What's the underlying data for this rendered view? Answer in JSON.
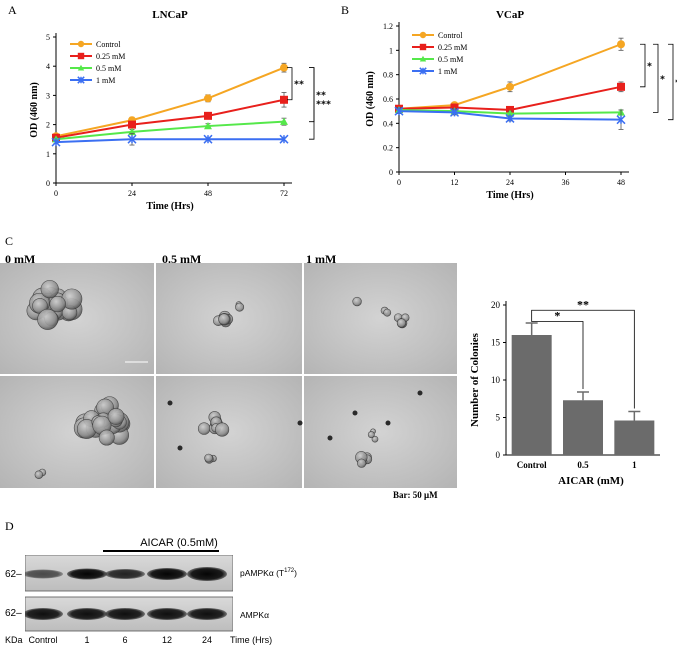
{
  "panel_labels": {
    "a": "A",
    "b": "B",
    "c": "C",
    "d": "D"
  },
  "chart_data": [
    {
      "type": "line",
      "title": "LNCaP",
      "xlabel": "Time (Hrs)",
      "ylabel": "OD (460 nm)",
      "x": [
        0,
        24,
        48,
        72
      ],
      "xticks": [
        "0",
        "24",
        "48",
        "72"
      ],
      "yticks": [
        "0",
        "1",
        "2",
        "3",
        "4",
        "5"
      ],
      "xlim": [
        0,
        72
      ],
      "ylim": [
        0,
        5
      ],
      "legend": "top-left",
      "series": [
        {
          "name": "Control",
          "values": [
            1.6,
            2.15,
            2.9,
            3.95
          ],
          "errors": [
            0.05,
            0.1,
            0.12,
            0.15
          ],
          "color": "#f5a623",
          "marker": "circle"
        },
        {
          "name": "0.25 mM",
          "values": [
            1.55,
            2.0,
            2.3,
            2.85
          ],
          "errors": [
            0.05,
            0.08,
            0.1,
            0.25
          ],
          "color": "#e8201c",
          "marker": "square"
        },
        {
          "name": "0.5 mM",
          "values": [
            1.5,
            1.75,
            1.95,
            2.1
          ],
          "errors": [
            0.05,
            0.08,
            0.08,
            0.12
          ],
          "color": "#55e84a",
          "marker": "triangle"
        },
        {
          "name": "1 mM",
          "values": [
            1.4,
            1.5,
            1.5,
            1.5
          ],
          "errors": [
            0.05,
            0.2,
            0.05,
            0.05
          ],
          "color": "#3b6ff2",
          "marker": "x"
        }
      ],
      "significance": [
        "**",
        "**",
        "***"
      ]
    },
    {
      "type": "line",
      "title": "VCaP",
      "xlabel": "Time (Hrs)",
      "ylabel": "OD (460 nm)",
      "x": [
        0,
        12,
        24,
        48
      ],
      "xticks": [
        "0",
        "12",
        "24",
        "36",
        "48"
      ],
      "yticks": [
        "0",
        "0.2",
        "0.4",
        "0.6",
        "0.8",
        "1",
        "1.2"
      ],
      "xlim": [
        0,
        48
      ],
      "ylim": [
        0,
        1.2
      ],
      "legend": "top-left",
      "series": [
        {
          "name": "Control",
          "values": [
            0.52,
            0.55,
            0.7,
            1.05
          ],
          "errors": [
            0.02,
            0.02,
            0.04,
            0.05
          ],
          "color": "#f5a623",
          "marker": "circle"
        },
        {
          "name": "0.25 mM",
          "values": [
            0.52,
            0.53,
            0.51,
            0.7
          ],
          "errors": [
            0.02,
            0.02,
            0.02,
            0.04
          ],
          "color": "#e8201c",
          "marker": "square"
        },
        {
          "name": "0.5 mM",
          "values": [
            0.51,
            0.5,
            0.48,
            0.49
          ],
          "errors": [
            0.02,
            0.02,
            0.02,
            0.02
          ],
          "color": "#55e84a",
          "marker": "triangle"
        },
        {
          "name": "1 mM",
          "values": [
            0.5,
            0.49,
            0.44,
            0.43
          ],
          "errors": [
            0.02,
            0.02,
            0.02,
            0.08
          ],
          "color": "#3b6ff2",
          "marker": "x"
        }
      ],
      "significance": [
        "*",
        "*",
        "*"
      ]
    },
    {
      "type": "bar",
      "categories": [
        "Control",
        "0.5",
        "1"
      ],
      "values": [
        16,
        7.3,
        4.6
      ],
      "errors": [
        1.6,
        1.1,
        1.2
      ],
      "xlabel": "AICAR (mM)",
      "ylabel": "Number of Colonies",
      "yticks": [
        "0",
        "5",
        "10",
        "15",
        "20"
      ],
      "ylim": [
        0,
        20
      ],
      "bar_color": "#6b6b6b",
      "significance": [
        "*",
        "**"
      ]
    }
  ],
  "micrographs": {
    "column_labels": [
      "0 mM",
      "0.5 mM",
      "1 mM"
    ],
    "scale_note": "Bar: 50 μM"
  },
  "western_blot": {
    "treatment_label": "AICAR (0.5mM)",
    "row_labels": [
      "pAMPKα (T",
      "AMPKα"
    ],
    "row1_superscript": "172",
    "row1_suffix": ")",
    "marker_labels": [
      "62–",
      "62–"
    ],
    "unit_label": "KDa",
    "lanes": [
      "Control",
      "1",
      "6",
      "12",
      "24"
    ],
    "time_label": "Time (Hrs)"
  }
}
